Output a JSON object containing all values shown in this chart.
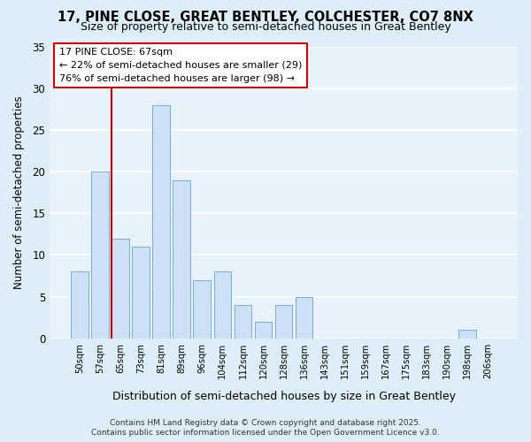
{
  "title_line1": "17, PINE CLOSE, GREAT BENTLEY, COLCHESTER, CO7 8NX",
  "title_line2": "Size of property relative to semi-detached houses in Great Bentley",
  "bar_labels": [
    "50sqm",
    "57sqm",
    "65sqm",
    "73sqm",
    "81sqm",
    "89sqm",
    "96sqm",
    "104sqm",
    "112sqm",
    "120sqm",
    "128sqm",
    "136sqm",
    "143sqm",
    "151sqm",
    "159sqm",
    "167sqm",
    "175sqm",
    "183sqm",
    "190sqm",
    "198sqm",
    "206sqm"
  ],
  "bar_values": [
    8,
    20,
    12,
    11,
    28,
    19,
    7,
    8,
    4,
    2,
    4,
    5,
    0,
    0,
    0,
    0,
    0,
    0,
    0,
    1,
    0
  ],
  "bar_color": "#cde0f5",
  "bar_edge_color": "#7aadd4",
  "background_color": "#ddeeff",
  "plot_bg_color": "#e8f2fb",
  "grid_color": "#ffffff",
  "ylabel": "Number of semi-detached properties",
  "xlabel": "Distribution of semi-detached houses by size in Great Bentley",
  "ylim": [
    0,
    35
  ],
  "yticks": [
    0,
    5,
    10,
    15,
    20,
    25,
    30,
    35
  ],
  "property_line_label": "17 PINE CLOSE: 67sqm",
  "annotation_line1": "← 22% of semi-detached houses are smaller (29)",
  "annotation_line2": "76% of semi-detached houses are larger (98) →",
  "vline_color": "#cc0000",
  "box_edge_color": "#cc0000",
  "footer_line1": "Contains HM Land Registry data © Crown copyright and database right 2025.",
  "footer_line2": "Contains public sector information licensed under the Open Government Licence v3.0."
}
